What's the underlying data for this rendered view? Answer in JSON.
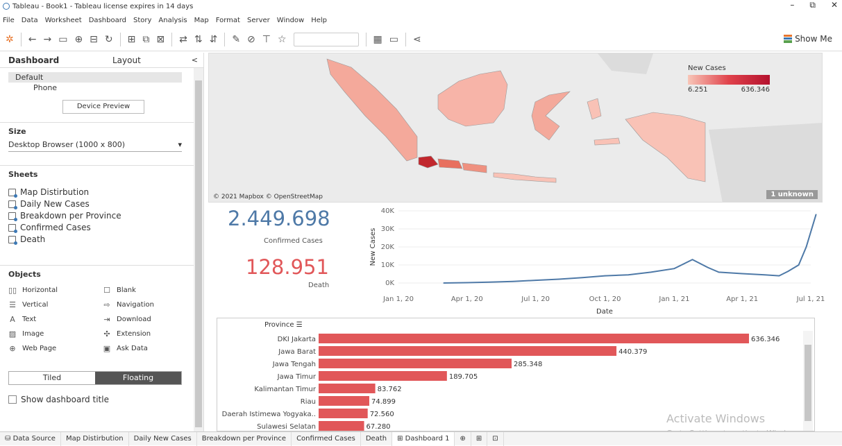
{
  "window": {
    "title": "Tableau - Book1 - Tableau license expires in 14 days",
    "min": "–",
    "max": "⧉",
    "close": "✕"
  },
  "menu": [
    "File",
    "Data",
    "Worksheet",
    "Dashboard",
    "Story",
    "Analysis",
    "Map",
    "Format",
    "Server",
    "Window",
    "Help"
  ],
  "toolbar": {
    "show_me": "Show Me"
  },
  "left_panel": {
    "tabs": [
      "Dashboard",
      "Layout"
    ],
    "close": "<",
    "devices": {
      "default": "Default",
      "phone": "Phone",
      "preview_button": "Device Preview"
    },
    "size": {
      "title": "Size",
      "value": "Desktop Browser (1000 x 800)"
    },
    "sheets": {
      "title": "Sheets",
      "items": [
        "Map Distirbution",
        "Daily New Cases",
        "Breakdown per Province",
        "Confirmed Cases",
        "Death"
      ]
    },
    "objects": {
      "title": "Objects",
      "items": [
        {
          "label": "Horizontal",
          "icon": "columns-icon",
          "glyph": "▯▯"
        },
        {
          "label": "Blank",
          "icon": "blank-icon",
          "glyph": "☐"
        },
        {
          "label": "Vertical",
          "icon": "rows-icon",
          "glyph": "☰"
        },
        {
          "label": "Navigation",
          "icon": "navigation-icon",
          "glyph": "⇨"
        },
        {
          "label": "Text",
          "icon": "text-icon",
          "glyph": "A"
        },
        {
          "label": "Download",
          "icon": "download-icon",
          "glyph": "⇥"
        },
        {
          "label": "Image",
          "icon": "image-icon",
          "glyph": "▨"
        },
        {
          "label": "Extension",
          "icon": "extension-icon",
          "glyph": "✣"
        },
        {
          "label": "Web Page",
          "icon": "globe-icon",
          "glyph": "⊕"
        },
        {
          "label": "Ask Data",
          "icon": "ask-data-icon",
          "glyph": "▣"
        }
      ]
    },
    "layout_mode": {
      "tiled": "Tiled",
      "floating": "Floating"
    },
    "show_title": "Show dashboard title"
  },
  "map": {
    "legend_title": "New Cases",
    "legend_min": "6.251",
    "legend_max": "636.346",
    "attribution": "© 2021 Mapbox © OpenStreetMap",
    "unknown": "1 unknown"
  },
  "kpis": {
    "confirmed_value": "2.449.698",
    "confirmed_label": "Confirmed Cases",
    "death_value": "128.951",
    "death_label": "Death"
  },
  "chart_data": [
    {
      "type": "line",
      "xlabel": "Date",
      "ylabel": "New Cases",
      "x_ticks": [
        "Jan 1, 20",
        "Apr 1, 20",
        "Jul 1, 20",
        "Oct 1, 20",
        "Jan 1, 21",
        "Apr 1, 21",
        "Jul 1, 21"
      ],
      "y_ticks": [
        "0K",
        "10K",
        "20K",
        "30K",
        "40K"
      ],
      "ylim": [
        0,
        40000
      ],
      "color": "#4e79a7",
      "series": [
        {
          "values": [
            {
              "x": "2020-03-01",
              "y": 0
            },
            {
              "x": "2020-04-01",
              "y": 200
            },
            {
              "x": "2020-05-01",
              "y": 500
            },
            {
              "x": "2020-06-01",
              "y": 900
            },
            {
              "x": "2020-07-01",
              "y": 1500
            },
            {
              "x": "2020-08-01",
              "y": 2100
            },
            {
              "x": "2020-09-01",
              "y": 3000
            },
            {
              "x": "2020-10-01",
              "y": 4000
            },
            {
              "x": "2020-11-01",
              "y": 4500
            },
            {
              "x": "2020-12-01",
              "y": 6000
            },
            {
              "x": "2021-01-01",
              "y": 8000
            },
            {
              "x": "2021-01-25",
              "y": 13000
            },
            {
              "x": "2021-02-15",
              "y": 8500
            },
            {
              "x": "2021-03-01",
              "y": 6000
            },
            {
              "x": "2021-04-01",
              "y": 5200
            },
            {
              "x": "2021-05-01",
              "y": 4500
            },
            {
              "x": "2021-05-20",
              "y": 4000
            },
            {
              "x": "2021-06-01",
              "y": 6500
            },
            {
              "x": "2021-06-15",
              "y": 10000
            },
            {
              "x": "2021-06-25",
              "y": 20000
            },
            {
              "x": "2021-07-08",
              "y": 38000
            }
          ]
        }
      ]
    },
    {
      "type": "bar",
      "orientation": "horizontal",
      "category_header": "Province",
      "color": "#e15759",
      "xlim": [
        0,
        636346
      ],
      "categories": [
        "DKI Jakarta",
        "Jawa Barat",
        "Jawa Tengah",
        "Jawa Timur",
        "Kalimantan Timur",
        "Riau",
        "Daerah Istimewa Yogyaka..",
        "Sulawesi Selatan"
      ],
      "values": [
        636346,
        440379,
        285348,
        189705,
        83762,
        74899,
        72560,
        67280
      ],
      "labels": [
        "636.346",
        "440.379",
        "285.348",
        "189.705",
        "83.762",
        "74.899",
        "72.560",
        "67.280"
      ]
    }
  ],
  "watermark": {
    "line1": "Activate Windows",
    "line2": "Go to Settings to activate Windows."
  },
  "bottom_tabs": [
    "Data Source",
    "Map Distirbution",
    "Daily New Cases",
    "Breakdown per Province",
    "Confirmed Cases",
    "Death",
    "Dashboard 1"
  ]
}
